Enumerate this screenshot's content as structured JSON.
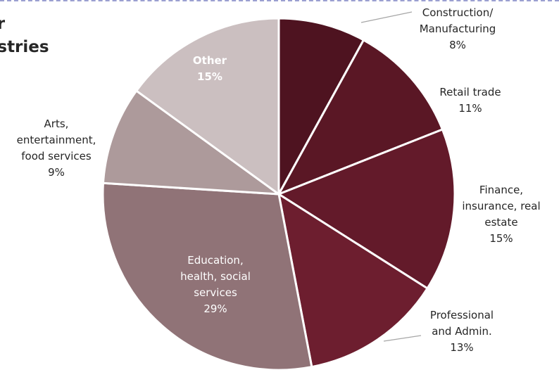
{
  "title_lines": [
    "or",
    "ustries"
  ],
  "chart_data": {
    "type": "pie",
    "title": "",
    "slices": [
      {
        "label": [
          "Construction/",
          "Manufacturing"
        ],
        "value": 8,
        "value_label": "8%",
        "color": "#4e1320"
      },
      {
        "label": [
          "Retail trade"
        ],
        "value": 11,
        "value_label": "11%",
        "color": "#5a1725"
      },
      {
        "label": [
          "Finance,",
          "insurance, real",
          "estate"
        ],
        "value": 15,
        "value_label": "15%",
        "color": "#631a2a"
      },
      {
        "label": [
          "Professional",
          "and Admin."
        ],
        "value": 13,
        "value_label": "13%",
        "color": "#6d1e2f"
      },
      {
        "label": [
          "Education,",
          "health, social",
          "services"
        ],
        "value": 29,
        "value_label": "29%",
        "color": "#907377"
      },
      {
        "label": [
          "Arts,",
          "entertainment,",
          "food services"
        ],
        "value": 9,
        "value_label": "9%",
        "color": "#ad9a9b"
      },
      {
        "label": [
          "Other"
        ],
        "value": 15,
        "value_label": "15%",
        "color": "#cbbfc0"
      }
    ]
  }
}
